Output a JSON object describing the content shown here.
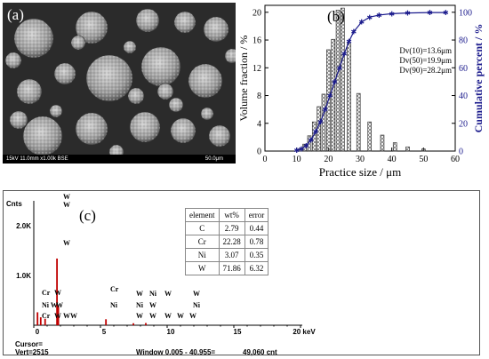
{
  "panel_a": {
    "label": "(a)",
    "footer_left": "15kV 11.0mm x1.00k BSE",
    "footer_right": "50.0μm"
  },
  "chart_data": [
    {
      "type": "bar",
      "panel_label": "(b)",
      "xlabel": "Practice size / μm",
      "ylabel": "Volume fraction / %",
      "y2label": "Cumulative percent / %",
      "xlim": [
        0,
        60
      ],
      "ylim": [
        0,
        21
      ],
      "y2lim": [
        0,
        105
      ],
      "xticks": [
        0,
        10,
        20,
        30,
        40,
        50,
        60
      ],
      "yticks": [
        0,
        4,
        8,
        12,
        16,
        20
      ],
      "y2ticks": [
        0,
        20,
        40,
        60,
        80,
        100
      ],
      "annotations": [
        "Dv(10)=13.6μm",
        "Dv(50)=19.9μm",
        "Dv(90)=28.2μm"
      ],
      "series": [
        {
          "kind": "bar",
          "x": [
            11,
            12.5,
            14,
            15.5,
            17,
            18.5,
            20,
            21.5,
            23,
            24.5,
            26.5,
            29.5,
            33,
            37,
            41,
            45,
            50
          ],
          "values": [
            0.3,
            1.0,
            2.2,
            4.2,
            6.4,
            8.2,
            14.6,
            16.1,
            20.3,
            20.6,
            15.5,
            8.3,
            4.2,
            2.3,
            1.2,
            0.6,
            0.3
          ]
        },
        {
          "kind": "line",
          "x": [
            10,
            11.5,
            13,
            14.5,
            16,
            17.5,
            19,
            20.5,
            22,
            23.5,
            25,
            26.5,
            28,
            30.5,
            33,
            36,
            40,
            45,
            52,
            57
          ],
          "values": [
            0.5,
            1.5,
            4,
            8,
            14,
            21,
            30,
            40,
            50,
            60,
            70,
            79,
            86,
            93,
            96.5,
            98,
            99,
            99.5,
            99.8,
            99.8
          ]
        }
      ]
    },
    {
      "type": "table",
      "panel_label": "(c)",
      "columns": [
        "element",
        "wt%",
        "error"
      ],
      "rows": [
        [
          "C",
          "2.79",
          "0.44"
        ],
        [
          "Cr",
          "22.28",
          "0.78"
        ],
        [
          "Ni",
          "3.07",
          "0.35"
        ],
        [
          "W",
          "71.86",
          "6.32"
        ]
      ]
    },
    {
      "type": "line",
      "ylabel": "Cnts",
      "xlim": [
        0,
        20
      ],
      "ylim": [
        0,
        2500
      ],
      "xticks": [
        0,
        5,
        10,
        15,
        20
      ],
      "xtick_labels": [
        "0",
        "5",
        "10",
        "15",
        "20 keV"
      ],
      "ytick_labels": [
        "1.0K",
        "2.0K"
      ],
      "y_tick_values": [
        1000,
        2000
      ],
      "peaks": [
        {
          "x": 0.28,
          "y": 260
        },
        {
          "x": 0.52,
          "y": 160
        },
        {
          "x": 0.85,
          "y": 130
        },
        {
          "x": 1.74,
          "y": 1340
        },
        {
          "x": 1.84,
          "y": 380
        },
        {
          "x": 5.41,
          "y": 120
        },
        {
          "x": 7.47,
          "y": 40
        },
        {
          "x": 8.4,
          "y": 45
        }
      ],
      "peak_labels": [
        "W",
        "W",
        "W",
        "Cr",
        "Ni W",
        "Cr",
        "W",
        "W",
        "Cr",
        "Ni",
        "W",
        "Ni",
        "W",
        "Ni",
        "W",
        "W",
        "W",
        "W",
        "W",
        "W",
        "W",
        "Ni",
        "W",
        "W",
        "W"
      ],
      "footer": {
        "cursor": "Cursor=",
        "vert": "Vert=2515",
        "window": "Window 0.005 - 40.955=",
        "count": "49,060 cnt"
      }
    }
  ]
}
